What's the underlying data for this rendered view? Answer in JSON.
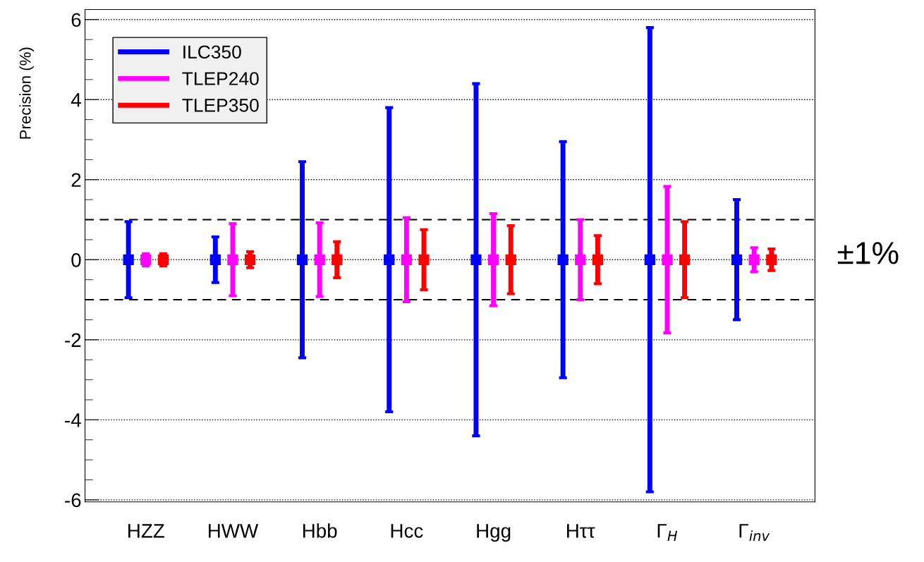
{
  "chart_data": {
    "type": "scatter",
    "ylabel": "Precision (%)",
    "categories": [
      "HZZ",
      "HWW",
      "Hbb",
      "Hcc",
      "Hgg",
      "Hττ",
      "Γ$_{H}$",
      "Γ$_{inv}$"
    ],
    "series": [
      {
        "name": "ILC350",
        "color": "#0000ff",
        "values": [
          0,
          0,
          0,
          0,
          0,
          0,
          0,
          0
        ],
        "errors": [
          0.95,
          0.57,
          2.45,
          3.8,
          4.4,
          2.95,
          5.8,
          1.5
        ]
      },
      {
        "name": "TLEP240",
        "color": "#ff00ff",
        "values": [
          0,
          0,
          0,
          0,
          0,
          0,
          0,
          0
        ],
        "errors": [
          0.15,
          0.9,
          0.92,
          1.05,
          1.15,
          1.0,
          1.83,
          0.3
        ]
      },
      {
        "name": "TLEP350",
        "color": "#ff0000",
        "values": [
          0,
          0,
          0,
          0,
          0,
          0,
          0,
          0
        ],
        "errors": [
          0.15,
          0.2,
          0.45,
          0.75,
          0.85,
          0.6,
          0.95,
          0.27
        ]
      }
    ],
    "ylim": [
      -6.05,
      6.25
    ],
    "yticks": [
      -6,
      -4,
      -2,
      0,
      2,
      4,
      6
    ],
    "ref_lines": [
      {
        "axis": "y",
        "value": 1,
        "color": "#000000",
        "line_style": "dashed"
      },
      {
        "axis": "y",
        "value": -1,
        "color": "#000000",
        "line_style": "dashed"
      }
    ],
    "annotations": [
      "±1%"
    ],
    "grid": "y",
    "legend": "top left",
    "marker": "square"
  }
}
